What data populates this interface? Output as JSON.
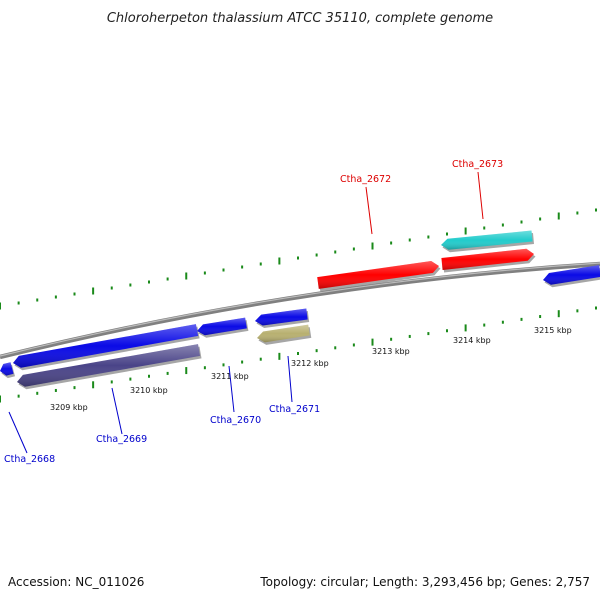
{
  "title": "Chloroherpeton thalassium ATCC 35110, complete genome",
  "footer": {
    "accession": "Accession: NC_011026",
    "summary": "Topology: circular; Length: 3,293,456 bp; Genes: 2,757"
  },
  "colors": {
    "backbone": "#808080",
    "tick": "#1a8a1a",
    "forward_label": "#dd0000",
    "reverse_label": "#0000cc",
    "gene_blue": "#0a0ae6",
    "gene_red": "#ff0000",
    "gene_cyan": "#22cccc",
    "gene_purple": "#4a4488",
    "gene_olive": "#b8b070"
  },
  "position_labels": [
    "3209 kbp",
    "3210 kbp",
    "3211 kbp",
    "3212 kbp",
    "3213 kbp",
    "3214 kbp",
    "3215 kbp"
  ],
  "gene_labels": [
    {
      "name": "Ctha_2668",
      "strand": "reverse"
    },
    {
      "name": "Ctha_2669",
      "strand": "reverse"
    },
    {
      "name": "Ctha_2670",
      "strand": "reverse"
    },
    {
      "name": "Ctha_2671",
      "strand": "reverse"
    },
    {
      "name": "Ctha_2672",
      "strand": "forward"
    },
    {
      "name": "Ctha_2673",
      "strand": "forward"
    }
  ]
}
